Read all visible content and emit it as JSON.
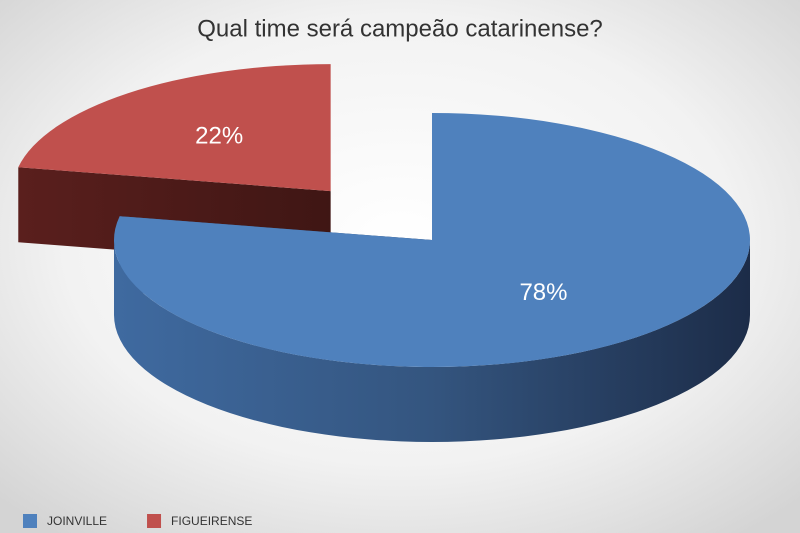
{
  "chart_data": {
    "type": "pie",
    "title": "Qual time será campeão catarinense?",
    "categories": [
      "JOINVILLE",
      "FIGUEIRENSE"
    ],
    "values": [
      78,
      22
    ],
    "value_labels": [
      "78%",
      "22%"
    ],
    "colors": [
      "#4f81bd",
      "#c0504d"
    ],
    "legend": "bottom-left"
  }
}
